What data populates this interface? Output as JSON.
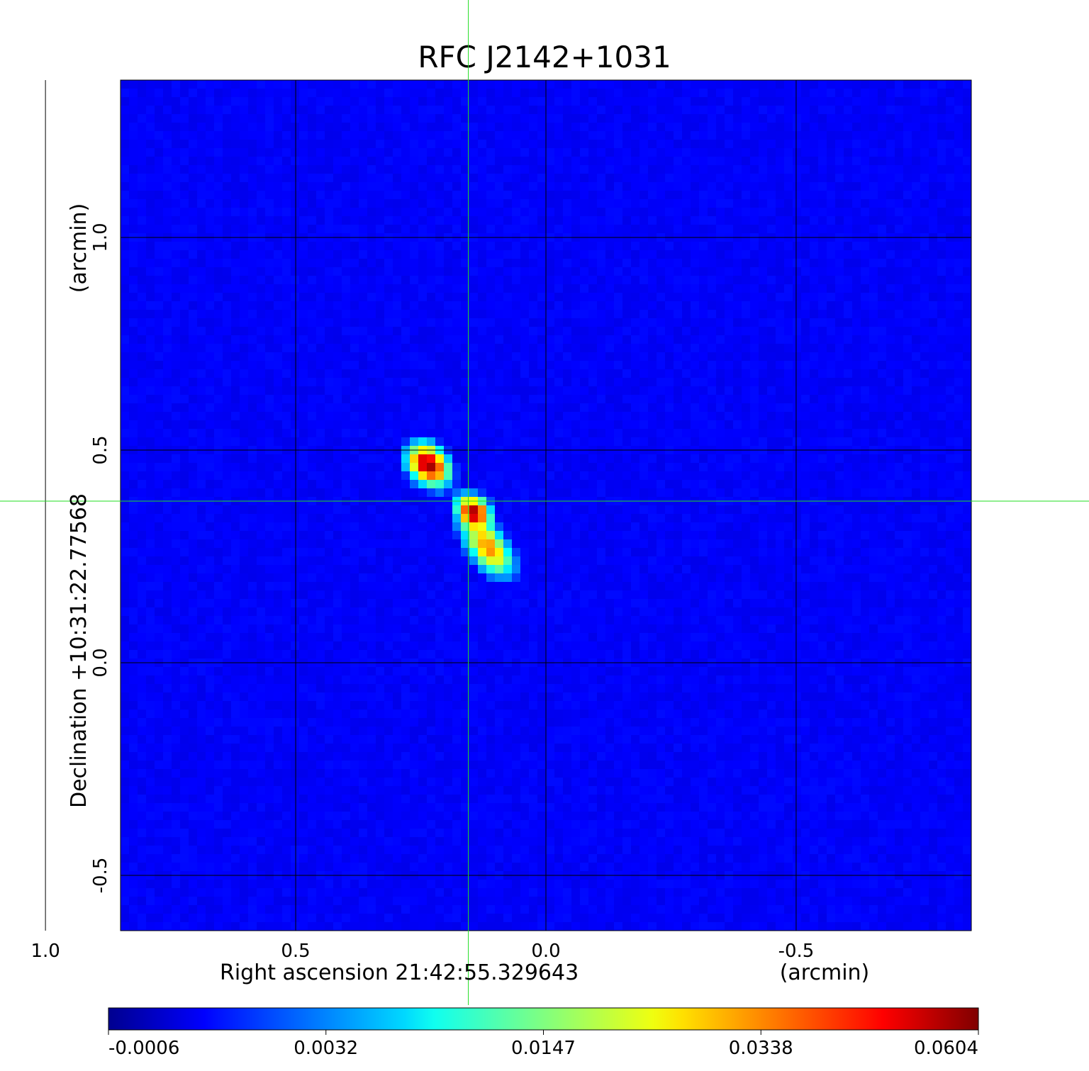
{
  "chart_data": {
    "type": "heatmap",
    "title": "RFC J2142+1031",
    "xlabel": "Right ascension  21:42:55.329643",
    "xunit": "(arcmin)",
    "ylabel": "Declination  +10:31:22.77568",
    "yunit": "(arcmin)",
    "xlim": [
      0.85,
      -0.85
    ],
    "ylim": [
      -0.63,
      1.37
    ],
    "x_ticks": [
      1.0,
      0.5,
      0.0,
      -0.5
    ],
    "x_tick_labels": [
      "1.0",
      "0.5",
      "0.0",
      "-0.5"
    ],
    "y_ticks": [
      -0.5,
      0.0,
      0.5,
      1.0
    ],
    "y_tick_labels": [
      "-0.5",
      "0.0",
      "0.5",
      "1.0"
    ],
    "grid": true,
    "crosshair": {
      "x": 0.155,
      "y": 0.38,
      "color": "#22dd22"
    },
    "colormap": "jet",
    "colorbar": {
      "ticks": [
        -0.0006,
        0.0032,
        0.0147,
        0.0338,
        0.0604
      ],
      "tick_labels": [
        "-0.0006",
        "0.0032",
        "0.0147",
        "0.0338",
        "0.0604"
      ]
    },
    "components": [
      {
        "x": 0.235,
        "y": 0.465,
        "peak": 0.0604,
        "sigma_major": 0.028,
        "sigma_minor": 0.02,
        "pa_deg": 30
      },
      {
        "x": 0.145,
        "y": 0.355,
        "peak": 0.055,
        "sigma_major": 0.022,
        "sigma_minor": 0.017,
        "pa_deg": 30
      },
      {
        "x": 0.115,
        "y": 0.27,
        "peak": 0.034,
        "sigma_major": 0.04,
        "sigma_minor": 0.02,
        "pa_deg": 30
      }
    ],
    "background_level": 0.0
  },
  "colors": {
    "title": "#1010cc",
    "background_map": "#1a3cf0",
    "grid": "#000000"
  }
}
